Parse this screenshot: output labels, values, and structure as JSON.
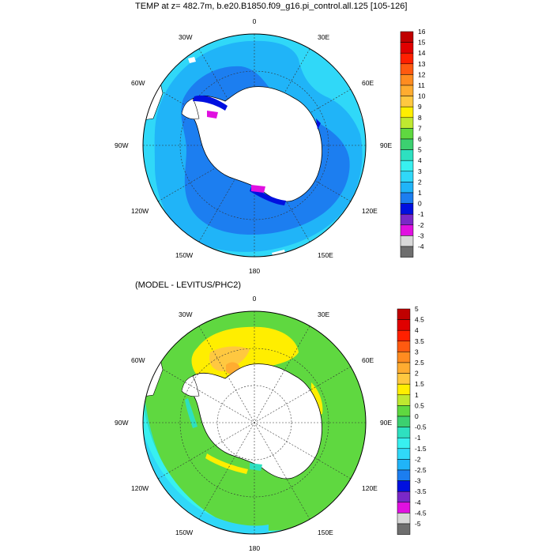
{
  "panel1": {
    "title": "TEMP at z= 482.7m, b.e20.B1850.f09_g16.pi_control.all.125 [105-126]",
    "lon_labels": [
      "0",
      "30E",
      "60E",
      "90E",
      "120E",
      "150E",
      "180",
      "150W",
      "120W",
      "90W",
      "60W",
      "30W"
    ],
    "colorbar": {
      "labels": [
        "16",
        "15",
        "14",
        "13",
        "12",
        "11",
        "10",
        "9",
        "8",
        "7",
        "6",
        "5",
        "4",
        "3",
        "2",
        "1",
        "0",
        "-1",
        "-2",
        "-3",
        "-4"
      ],
      "colors": [
        "#c00000",
        "#e00000",
        "#ff2000",
        "#ff5a10",
        "#ff8c20",
        "#ffac30",
        "#ffc840",
        "#ffee00",
        "#bfe830",
        "#5fd840",
        "#3cd070",
        "#2ee0c0",
        "#38f0f0",
        "#30d8f8",
        "#20b4f8",
        "#1c7ef0",
        "#0010e0",
        "#7a28c8",
        "#e010e0",
        "#d8d8d8",
        "#6e6e6e"
      ]
    }
  },
  "panel2": {
    "title": "(MODEL - LEVITUS/PHC2)",
    "lon_labels": [
      "0",
      "30E",
      "60E",
      "90E",
      "120E",
      "150E",
      "180",
      "150W",
      "120W",
      "90W",
      "60W",
      "30W"
    ],
    "colorbar": {
      "labels": [
        "5",
        "4.5",
        "4",
        "3.5",
        "3",
        "2.5",
        "2",
        "1.5",
        "1",
        "0.5",
        "0",
        "-0.5",
        "-1",
        "-1.5",
        "-2",
        "-2.5",
        "-3",
        "-3.5",
        "-4",
        "-4.5",
        "-5"
      ],
      "colors": [
        "#c00000",
        "#e00000",
        "#ff2000",
        "#ff5a10",
        "#ff8c20",
        "#ffac30",
        "#ffc840",
        "#ffee00",
        "#bfe830",
        "#5fd840",
        "#3cd070",
        "#2ee0c0",
        "#38f0f0",
        "#30d8f8",
        "#20b4f8",
        "#1c7ef0",
        "#0010e0",
        "#7a28c8",
        "#e010e0",
        "#d8d8d8",
        "#6e6e6e"
      ]
    }
  }
}
